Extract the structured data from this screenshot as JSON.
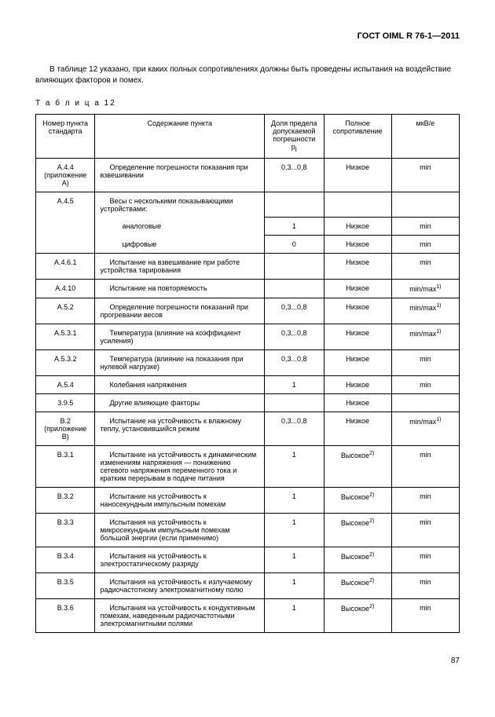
{
  "header": "ГОСТ OIML R 76-1—2011",
  "intro": "В таблице 12 указано, при каких полных сопротивлениях должны быть проведены испытания на воздействие влияющих факторов и помех.",
  "table_label": "Т а б л и ц а  12",
  "columns": {
    "c1": "Номер пункта стандарта",
    "c2": "Содержание пункта",
    "c3_l1": "Доля предела",
    "c3_l2": "допускаемой",
    "c3_l3": "погрешности p",
    "c3_sub": "i",
    "c4_l1": "Полное",
    "c4_l2": "сопротивление",
    "c5": "мкВ/e"
  },
  "rows": [
    {
      "a": "A.4.4",
      "a2": "(приложение А)",
      "b": "Определение погрешности показания при взвешивании",
      "c": "0,3...0,8",
      "d": "Низкое",
      "e": "min"
    },
    {
      "a": "A.4.5",
      "b": "Весы с несколькими показывающими устройствами:"
    },
    {
      "b2": "аналоговые",
      "c": "1",
      "d": "Низкое",
      "e": "min"
    },
    {
      "b2": "цифровые",
      "c": "0",
      "d": "Низкое",
      "e": "min"
    },
    {
      "a": "A.4.6.1",
      "b": "Испытание на взвешивание при работе устройства тарирования",
      "c": "",
      "d": "Низкое",
      "e": "min"
    },
    {
      "a": "A.4.10",
      "b": "Испытание на повторяемость",
      "c": "",
      "d": "Низкое",
      "e": "min/max",
      "sup": "1)"
    },
    {
      "a": "A.5.2",
      "b": "Определение погрешности показаний при прогревании весов",
      "c": "0,3...0,8",
      "d": "Низкое",
      "e": "min/max",
      "sup": "1)"
    },
    {
      "a": "A.5.3.1",
      "b": "Температура (влияние на коэффициент усиления)",
      "c": "0,3,..0,8",
      "d": "Низкое",
      "e": "min/max",
      "sup": "1)"
    },
    {
      "a": "A.5.3.2",
      "b": "Температура (влияние на показания при нулевой нагрузке)",
      "c": "0,3...0,8",
      "d": "Низкое",
      "e": "min"
    },
    {
      "a": "A.5.4",
      "b": "Колебания напряжения",
      "c": "1",
      "d": "Низкое",
      "e": "min"
    },
    {
      "a": "3.9.5",
      "b": "Другие влияющие факторы",
      "c": "",
      "d": "Низкое",
      "e": ""
    },
    {
      "a": "B.2",
      "a2": "(приложение В)",
      "b": "Испытание на устойчивость к влажному теплу, установившийся режим",
      "c": "0,3...0,8",
      "d": "Низкое",
      "e": "min/max",
      "sup": "1)"
    },
    {
      "a": "B.3.1",
      "b": "Испытание на устойчивость к динамическим изменениям напряжения — понижению сетевого напряжения переменного тока и кратким перерывам в подаче питания",
      "c": "1",
      "d": "Высокое",
      "dsup": "2)",
      "e": "min"
    },
    {
      "a": "B.3.2",
      "b": "Испытание на устойчивость к наносекундным импульсным помехам",
      "c": "1",
      "d": "Высокое",
      "dsup": "2)",
      "e": "min"
    },
    {
      "a": "B.3.3",
      "b": "Испытания на устойчивость к микросекундным импульсным помехам большой энергии (если применимо)",
      "c": "1",
      "d": "Высокое",
      "dsup": "2)",
      "e": "min"
    },
    {
      "a": "B.3.4",
      "b": "Испытания на устойчивость к электростатическому разряду",
      "c": "1",
      "d": "Высокое",
      "dsup": "2)",
      "e": "min"
    },
    {
      "a": "B.3.5",
      "b": "Испытания на устойчивость к излучаемому радиочастотному электромагнитному полю",
      "c": "1",
      "d": "Высокое",
      "dsup": "2)",
      "e": "min"
    },
    {
      "a": "B.3.6",
      "b": "Испытания на устойчивость к кондуктивным помехам, наведенным радиочастотными электромагнитными полями",
      "c": "1",
      "d": "Высокое",
      "dsup": "2)",
      "e": "min"
    }
  ],
  "page_number": "87",
  "style": {
    "background_color": "#ffffff",
    "text_color": "#000000",
    "border_color": "#000000",
    "font_family": "Arial, sans-serif",
    "body_font_size": 10,
    "table_font_size": 9,
    "col_widths_pct": [
      14,
      40,
      14,
      16,
      16
    ]
  }
}
